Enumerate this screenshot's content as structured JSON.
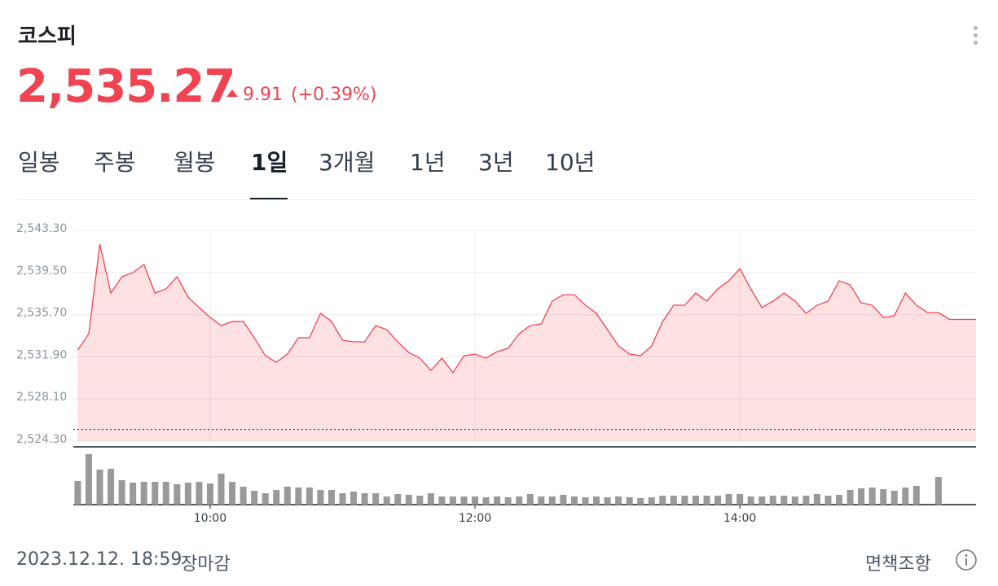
{
  "header": {
    "title": "코스피",
    "price": "2,535.27",
    "change": "9.91",
    "change_pct": "(+0.39%)"
  },
  "tabs": {
    "items": [
      "일봉",
      "주봉",
      "월봉",
      "1일",
      "3개월",
      "1년",
      "3년",
      "10년"
    ],
    "active": 3
  },
  "chart_data": {
    "type": "line",
    "color": "#f04452",
    "xlim": [
      "08:58",
      "15:47"
    ],
    "xticks": [
      "10:00",
      "12:00",
      "14:00"
    ],
    "ylim": [
      2524.3,
      2544.55
    ],
    "yticks": [
      {
        "value": 2543.3,
        "label": "2,543.30"
      },
      {
        "value": 2539.5,
        "label": "2,539.50"
      },
      {
        "value": 2535.7,
        "label": "2,535.70"
      },
      {
        "value": 2531.9,
        "label": "2,531.90"
      },
      {
        "value": 2528.1,
        "label": "2,528.10"
      },
      {
        "value": 2524.3,
        "label": "2,524.30"
      }
    ],
    "grid": true,
    "reference_line": 2525.36,
    "series": [
      {
        "color": "#f04452",
        "x": [
          "09:00",
          "09:05",
          "09:10",
          "09:15",
          "09:20",
          "09:25",
          "09:30",
          "09:35",
          "09:40",
          "09:45",
          "09:50",
          "09:55",
          "10:00",
          "10:05",
          "10:10",
          "10:15",
          "10:20",
          "10:25",
          "10:30",
          "10:35",
          "10:40",
          "10:45",
          "10:50",
          "10:55",
          "11:00",
          "11:05",
          "11:10",
          "11:15",
          "11:20",
          "11:25",
          "11:30",
          "11:35",
          "11:40",
          "11:45",
          "11:50",
          "11:55",
          "12:00",
          "12:05",
          "12:10",
          "12:15",
          "12:20",
          "12:25",
          "12:30",
          "12:35",
          "12:40",
          "12:45",
          "12:50",
          "12:55",
          "13:00",
          "13:05",
          "13:10",
          "13:15",
          "13:20",
          "13:25",
          "13:30",
          "13:35",
          "13:40",
          "13:45",
          "13:50",
          "13:55",
          "14:00",
          "14:05",
          "14:10",
          "14:15",
          "14:20",
          "14:25",
          "14:30",
          "14:35",
          "14:40",
          "14:45",
          "14:50",
          "14:55",
          "15:00",
          "15:05",
          "15:10",
          "15:15",
          "15:20",
          "15:25",
          "15:30",
          "15:35",
          "15:47"
        ],
        "values": [
          2532.52,
          2533.98,
          2542.05,
          2537.65,
          2539.12,
          2539.48,
          2540.22,
          2537.65,
          2538.02,
          2539.12,
          2537.28,
          2536.33,
          2535.45,
          2534.72,
          2535.08,
          2535.08,
          2533.62,
          2532.0,
          2531.41,
          2532.15,
          2533.62,
          2533.62,
          2535.82,
          2535.08,
          2533.4,
          2533.25,
          2533.25,
          2534.72,
          2534.35,
          2533.25,
          2532.29,
          2531.78,
          2530.68,
          2531.78,
          2530.46,
          2532.0,
          2532.15,
          2531.78,
          2532.37,
          2532.66,
          2533.98,
          2534.72,
          2534.86,
          2536.92,
          2537.5,
          2537.5,
          2536.55,
          2535.82,
          2534.35,
          2532.88,
          2532.15,
          2532.0,
          2532.88,
          2535.08,
          2536.55,
          2536.55,
          2537.65,
          2536.92,
          2538.02,
          2538.75,
          2539.85,
          2538.02,
          2536.33,
          2536.92,
          2537.65,
          2536.92,
          2535.82,
          2536.55,
          2536.92,
          2538.75,
          2538.38,
          2536.77,
          2536.55,
          2535.45,
          2535.6,
          2537.65,
          2536.55,
          2535.89,
          2535.89,
          2535.27,
          2535.27
        ]
      }
    ],
    "volume": {
      "color": "#999999",
      "x": [
        "09:00",
        "09:05",
        "09:10",
        "09:15",
        "09:20",
        "09:25",
        "09:30",
        "09:35",
        "09:40",
        "09:45",
        "09:50",
        "09:55",
        "10:00",
        "10:05",
        "10:10",
        "10:15",
        "10:20",
        "10:25",
        "10:30",
        "10:35",
        "10:40",
        "10:45",
        "10:50",
        "10:55",
        "11:00",
        "11:05",
        "11:10",
        "11:15",
        "11:20",
        "11:25",
        "11:30",
        "11:35",
        "11:40",
        "11:45",
        "11:50",
        "11:55",
        "12:00",
        "12:05",
        "12:10",
        "12:15",
        "12:20",
        "12:25",
        "12:30",
        "12:35",
        "12:40",
        "12:45",
        "12:50",
        "12:55",
        "13:00",
        "13:05",
        "13:10",
        "13:15",
        "13:20",
        "13:25",
        "13:30",
        "13:35",
        "13:40",
        "13:45",
        "13:50",
        "13:55",
        "14:00",
        "14:05",
        "14:10",
        "14:15",
        "14:20",
        "14:25",
        "14:30",
        "14:35",
        "14:40",
        "14:45",
        "14:50",
        "14:55",
        "15:00",
        "15:05",
        "15:10",
        "15:15",
        "15:20",
        "15:30"
      ],
      "values": [
        29,
        62,
        43,
        44,
        30,
        27,
        28,
        28,
        28,
        25,
        27,
        28,
        26,
        38,
        28,
        22,
        17,
        14,
        18,
        22,
        21,
        21,
        18,
        18,
        14,
        16,
        14,
        14,
        10,
        13,
        12,
        11,
        14,
        10,
        10,
        10,
        10,
        9,
        10,
        9,
        10,
        13,
        10,
        10,
        12,
        10,
        9,
        10,
        9,
        10,
        9,
        8,
        9,
        11,
        11,
        11,
        11,
        11,
        11,
        13,
        13,
        10,
        10,
        11,
        11,
        10,
        11,
        13,
        11,
        12,
        18,
        20,
        21,
        19,
        17,
        21,
        23,
        34
      ]
    }
  },
  "footer": {
    "timestamp": "2023.12.12. 18:59",
    "status": "장마감",
    "disclaimer": "면책조항"
  }
}
